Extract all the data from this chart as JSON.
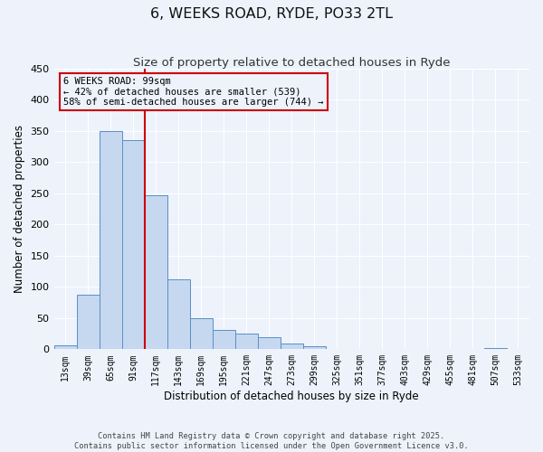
{
  "title": "6, WEEKS ROAD, RYDE, PO33 2TL",
  "subtitle": "Size of property relative to detached houses in Ryde",
  "xlabel": "Distribution of detached houses by size in Ryde",
  "ylabel": "Number of detached properties",
  "categories": [
    "13sqm",
    "39sqm",
    "65sqm",
    "91sqm",
    "117sqm",
    "143sqm",
    "169sqm",
    "195sqm",
    "221sqm",
    "247sqm",
    "273sqm",
    "299sqm",
    "325sqm",
    "351sqm",
    "377sqm",
    "403sqm",
    "429sqm",
    "455sqm",
    "481sqm",
    "507sqm",
    "533sqm"
  ],
  "values": [
    6,
    88,
    350,
    335,
    246,
    112,
    49,
    31,
    25,
    20,
    9,
    5,
    1,
    0,
    1,
    0,
    0,
    0,
    0,
    2,
    0
  ],
  "bar_color": "#c5d8f0",
  "bar_edge_color": "#5a8fc4",
  "bar_width": 1.0,
  "red_line_x": 3.5,
  "ylim": [
    0,
    450
  ],
  "yticks": [
    0,
    50,
    100,
    150,
    200,
    250,
    300,
    350,
    400,
    450
  ],
  "annotation_text1": "6 WEEKS ROAD: 99sqm",
  "annotation_text2": "← 42% of detached houses are smaller (539)",
  "annotation_text3": "58% of semi-detached houses are larger (744) →",
  "footer1": "Contains HM Land Registry data © Crown copyright and database right 2025.",
  "footer2": "Contains public sector information licensed under the Open Government Licence v3.0.",
  "background_color": "#edf2fb",
  "grid_color": "#ffffff",
  "box_color": "#cc0000"
}
